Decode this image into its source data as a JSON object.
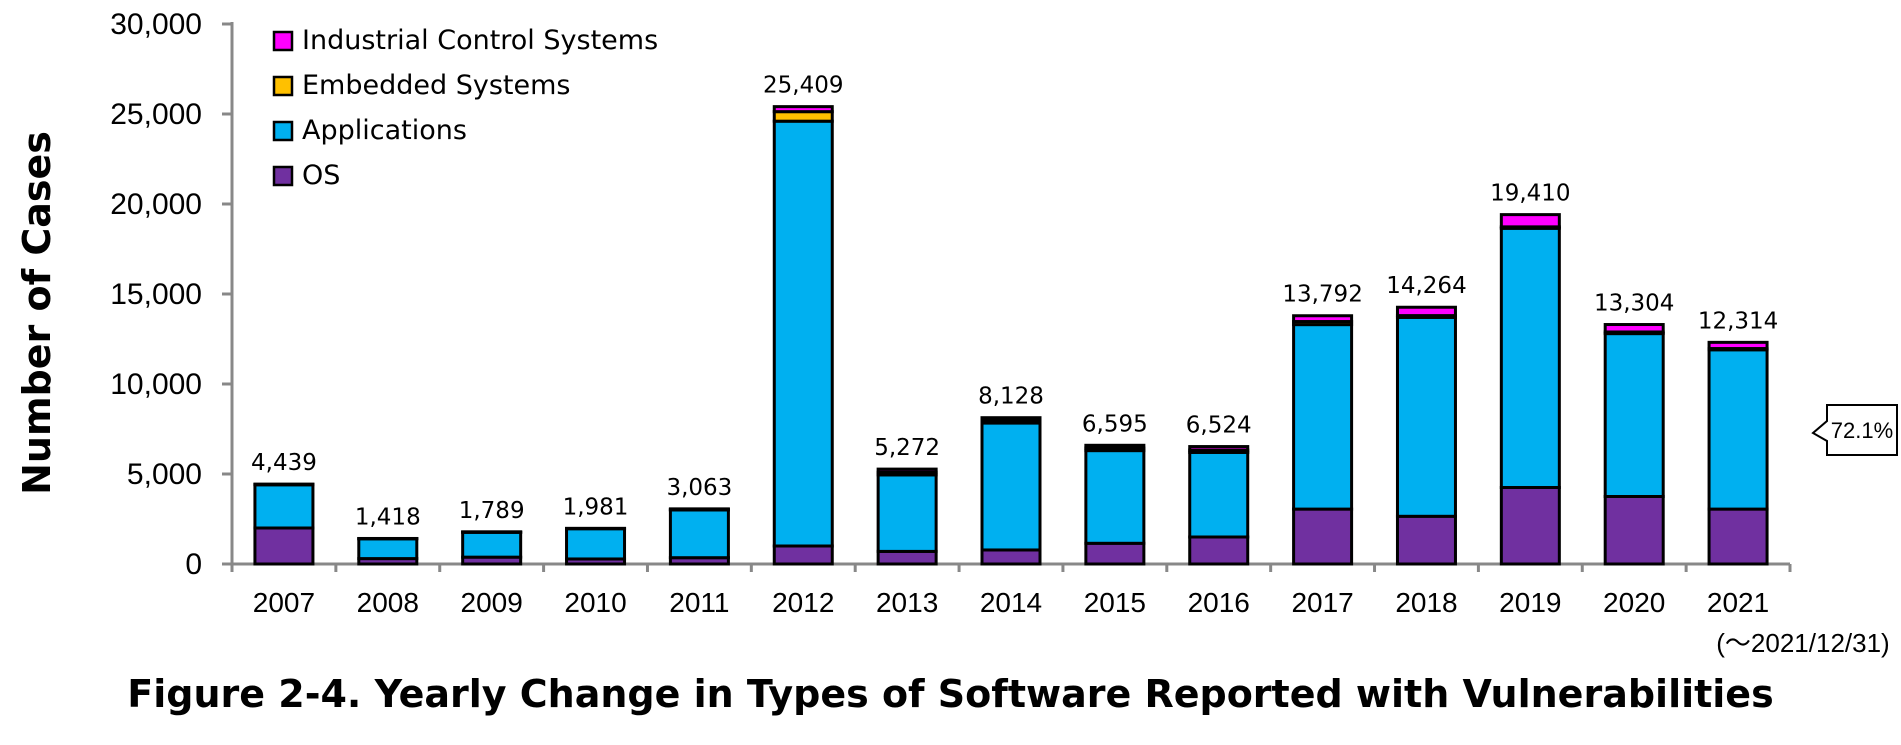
{
  "figure_title": "Figure 2-4. Yearly Change in Types of Software Reported with Vulnerabilities",
  "colors": {
    "OS": "#7030A0",
    "Applications": "#00B0F0",
    "Embedded Systems": "#FFC000",
    "Industrial Control Systems": "#FF00FF"
  },
  "chart_data": {
    "type": "bar",
    "stacked": true,
    "title": "Figure 2-4. Yearly Change in Types of Software Reported with Vulnerabilities",
    "ylabel": "Number of Cases",
    "xlabel": "",
    "ylim": [
      0,
      30000
    ],
    "yticks": [
      0,
      5000,
      10000,
      15000,
      20000,
      25000,
      30000
    ],
    "ytick_labels": [
      "0",
      "5,000",
      "10,000",
      "15,000",
      "20,000",
      "25,000",
      "30,000"
    ],
    "categories": [
      "2007",
      "2008",
      "2009",
      "2010",
      "2011",
      "2012",
      "2013",
      "2014",
      "2015",
      "2016",
      "2017",
      "2018",
      "2019",
      "2020",
      "2021"
    ],
    "category_note": "(～2021/12/31)",
    "legend_position": "top-left",
    "legend_order": [
      "Industrial Control Systems",
      "Embedded Systems",
      "Applications",
      "OS"
    ],
    "series": [
      {
        "name": "OS",
        "values": [
          2000,
          300,
          380,
          280,
          350,
          1000,
          700,
          780,
          1150,
          1500,
          3050,
          2650,
          4250,
          3750,
          3050
        ]
      },
      {
        "name": "Applications",
        "values": [
          2400,
          1100,
          1380,
          1680,
          2650,
          23600,
          4250,
          7050,
          5150,
          4700,
          10250,
          11050,
          14400,
          9050,
          8850
        ]
      },
      {
        "name": "Embedded Systems",
        "values": [
          15,
          8,
          10,
          8,
          20,
          530,
          150,
          160,
          140,
          130,
          170,
          100,
          80,
          90,
          70
        ]
      },
      {
        "name": "Industrial Control Systems",
        "values": [
          24,
          10,
          19,
          13,
          43,
          279,
          172,
          138,
          155,
          194,
          322,
          464,
          680,
          414,
          344
        ]
      }
    ],
    "totals": [
      4439,
      1418,
      1789,
      1981,
      3063,
      25409,
      5272,
      8128,
      6595,
      6524,
      13792,
      14264,
      19410,
      13304,
      12314
    ],
    "total_labels": [
      "4,439",
      "1,418",
      "1,789",
      "1,981",
      "3,063",
      "25,409",
      "5,272",
      "8,128",
      "6,595",
      "6,524",
      "13,792",
      "14,264",
      "19,410",
      "13,304",
      "12,314"
    ],
    "annotation": {
      "text": "72.1%",
      "category": "2021"
    }
  }
}
